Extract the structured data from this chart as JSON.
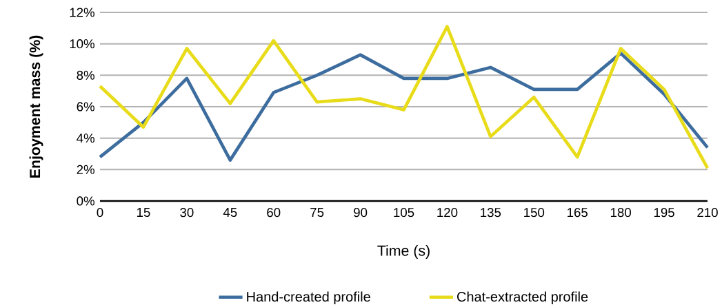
{
  "chart_data": {
    "type": "line",
    "xlabel": "Time (s)",
    "ylabel": "Enjoyment mass (%)",
    "x": [
      0,
      15,
      30,
      45,
      60,
      75,
      90,
      105,
      120,
      135,
      150,
      165,
      180,
      195,
      210
    ],
    "series": [
      {
        "name": "Hand-created profile",
        "color": "#3d6d9e",
        "values": [
          2.8,
          5.0,
          7.8,
          2.6,
          6.9,
          8.0,
          9.3,
          7.8,
          7.8,
          8.5,
          7.1,
          7.1,
          9.4,
          6.8,
          3.4
        ]
      },
      {
        "name": "Chat-extracted profile",
        "color": "#e8dc1a",
        "values": [
          7.3,
          4.7,
          9.7,
          6.2,
          10.2,
          6.3,
          6.5,
          5.8,
          11.1,
          4.1,
          6.6,
          2.8,
          9.7,
          7.1,
          2.1
        ]
      }
    ],
    "xlim": [
      0,
      210
    ],
    "ylim": [
      0,
      12
    ],
    "xticks": [
      0,
      15,
      30,
      45,
      60,
      75,
      90,
      105,
      120,
      135,
      150,
      165,
      180,
      195,
      210
    ],
    "yticks": [
      {
        "value": 0,
        "label": "0%"
      },
      {
        "value": 2,
        "label": "2%"
      },
      {
        "value": 4,
        "label": "4%"
      },
      {
        "value": 6,
        "label": "6%"
      },
      {
        "value": 8,
        "label": "8%"
      },
      {
        "value": 10,
        "label": "10%"
      },
      {
        "value": 12,
        "label": "12%"
      }
    ],
    "grid": "y",
    "legend": "bottom"
  }
}
